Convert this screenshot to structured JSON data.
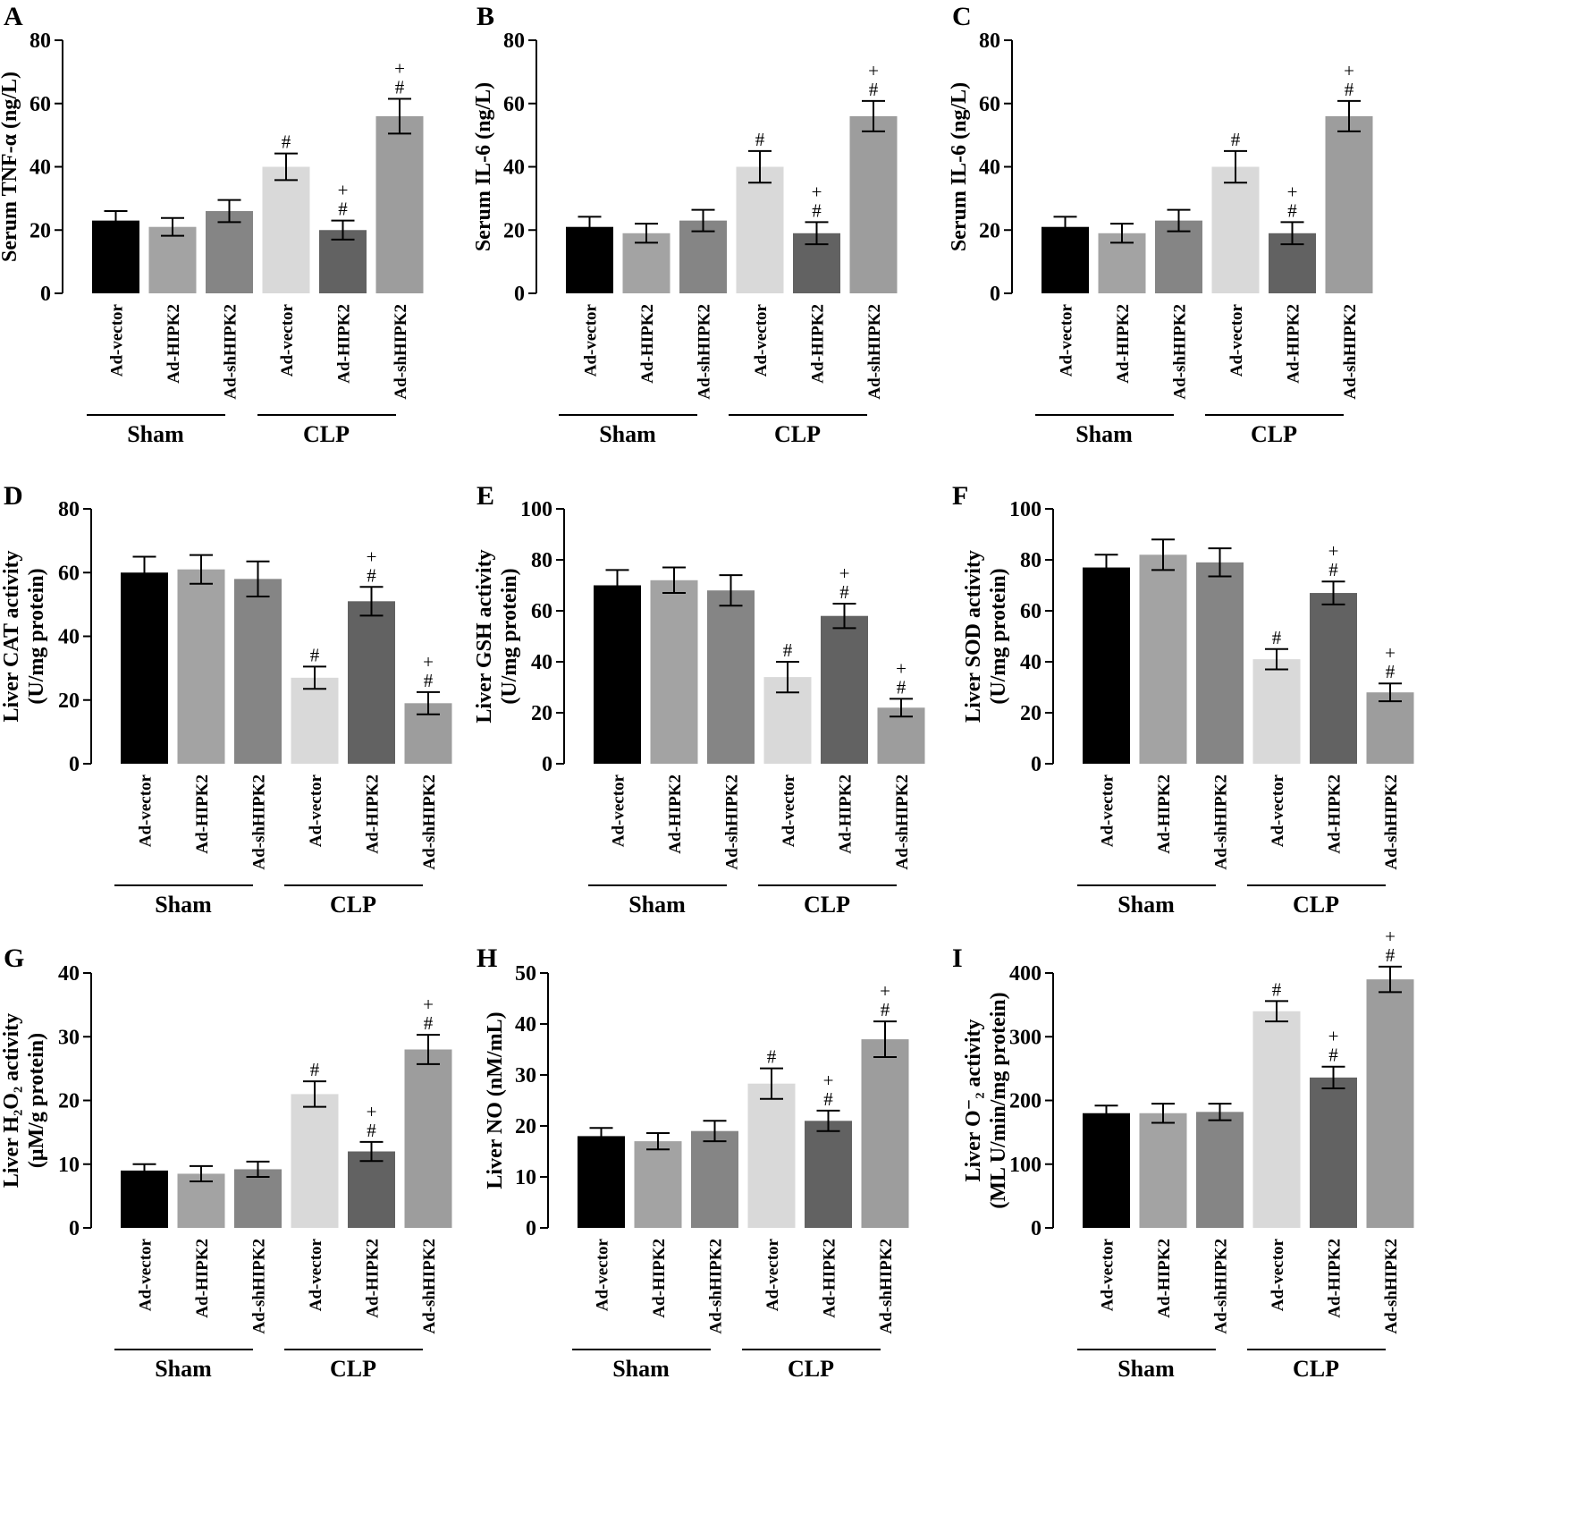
{
  "panels": [
    {
      "letter": "A",
      "ylabel": [
        "Serum TNF-α (ng/L)"
      ],
      "ymax": 80,
      "step": 20,
      "values": [
        23,
        21,
        26,
        40,
        20,
        56
      ],
      "errors": [
        3,
        2.8,
        3.5,
        4.2,
        3,
        5.5
      ],
      "marks": [
        [],
        [],
        [],
        [
          "#"
        ],
        [
          "#",
          "+"
        ],
        [
          "#",
          "+"
        ]
      ]
    },
    {
      "letter": "B",
      "ylabel": [
        "Serum IL-6 (ng/L)"
      ],
      "ymax": 80,
      "step": 20,
      "values": [
        21,
        19,
        23,
        40,
        19,
        56
      ],
      "errors": [
        3.2,
        3,
        3.4,
        5,
        3.5,
        4.8
      ],
      "marks": [
        [],
        [],
        [],
        [
          "#"
        ],
        [
          "#",
          "+"
        ],
        [
          "#",
          "+"
        ]
      ]
    },
    {
      "letter": "C",
      "ylabel": [
        "Serum IL-6 (ng/L)"
      ],
      "ymax": 80,
      "step": 20,
      "values": [
        21,
        19,
        23,
        40,
        19,
        56
      ],
      "errors": [
        3.2,
        3,
        3.4,
        5,
        3.5,
        4.8
      ],
      "marks": [
        [],
        [],
        [],
        [
          "#"
        ],
        [
          "#",
          "+"
        ],
        [
          "#",
          "+"
        ]
      ]
    },
    {
      "letter": "D",
      "ylabel": [
        "Liver CAT activity",
        "(U/mg protein)"
      ],
      "ymax": 80,
      "step": 20,
      "values": [
        60,
        61,
        58,
        27,
        51,
        19
      ],
      "errors": [
        5,
        4.5,
        5.5,
        3.5,
        4.5,
        3.5
      ],
      "marks": [
        [],
        [],
        [],
        [
          "#"
        ],
        [
          "#",
          "+"
        ],
        [
          "#",
          "+"
        ]
      ]
    },
    {
      "letter": "E",
      "ylabel": [
        "Liver GSH activity",
        "(U/mg protein)"
      ],
      "ymax": 100,
      "step": 20,
      "values": [
        70,
        72,
        68,
        34,
        58,
        22
      ],
      "errors": [
        6,
        5,
        6,
        6,
        4.8,
        3.5
      ],
      "marks": [
        [],
        [],
        [],
        [
          "#"
        ],
        [
          "#",
          "+"
        ],
        [
          "#",
          "+"
        ]
      ]
    },
    {
      "letter": "F",
      "ylabel": [
        "Liver SOD activity",
        "(U/mg protein)"
      ],
      "ymax": 100,
      "step": 20,
      "values": [
        77,
        82,
        79,
        41,
        67,
        28
      ],
      "errors": [
        5,
        6,
        5.5,
        4,
        4.5,
        3.5
      ],
      "marks": [
        [],
        [],
        [],
        [
          "#"
        ],
        [
          "#",
          "+"
        ],
        [
          "#",
          "+"
        ]
      ]
    },
    {
      "letter": "G",
      "ylabel": [
        "Liver H₂O₂ activity",
        "(μM/g protein)"
      ],
      "ymax": 40,
      "step": 10,
      "values": [
        9,
        8.5,
        9.2,
        21,
        12,
        28
      ],
      "errors": [
        1,
        1.2,
        1.2,
        2,
        1.5,
        2.3
      ],
      "marks": [
        [],
        [],
        [],
        [
          "#"
        ],
        [
          "#",
          "+"
        ],
        [
          "#",
          "+"
        ]
      ]
    },
    {
      "letter": "H",
      "ylabel": [
        "Liver NO (nM/mL)"
      ],
      "ymax": 50,
      "step": 10,
      "values": [
        18,
        17,
        19,
        28.3,
        21,
        37
      ],
      "errors": [
        1.6,
        1.6,
        2,
        3,
        2,
        3.5
      ],
      "marks": [
        [],
        [],
        [],
        [
          "#"
        ],
        [
          "#",
          "+"
        ],
        [
          "#",
          "+"
        ]
      ]
    },
    {
      "letter": "I",
      "ylabel": [
        "Liver O⁻₂ activity",
        "(ML U/min/mg protein)"
      ],
      "ymax": 400,
      "step": 100,
      "values": [
        180,
        180,
        182,
        340,
        236,
        390
      ],
      "errors": [
        12,
        15,
        13,
        16,
        17,
        20
      ],
      "marks": [
        [],
        [],
        [],
        [
          "#"
        ],
        [
          "#",
          "+"
        ],
        [
          "#",
          "+"
        ]
      ]
    }
  ],
  "categories": [
    "Ad-vector",
    "Ad-HIPK2",
    "Ad-shHIPK2",
    "Ad-vector",
    "Ad-HIPK2",
    "Ad-shHIPK2"
  ],
  "groups": [
    "Sham",
    "CLP"
  ],
  "colors": [
    "#000000",
    "#a3a3a3",
    "#858585",
    "#d9d9d9",
    "#626262",
    "#9d9d9d"
  ],
  "chart_data": [
    {
      "type": "bar",
      "title": "A",
      "ylabel": "Serum TNF-α (ng/L)",
      "ylim": [
        0,
        80
      ],
      "categories": [
        "Ad-vector",
        "Ad-HIPK2",
        "Ad-shHIPK2",
        "Ad-vector",
        "Ad-HIPK2",
        "Ad-shHIPK2"
      ],
      "groups": [
        "Sham",
        "CLP"
      ],
      "values": [
        23,
        21,
        26,
        40,
        20,
        56
      ],
      "errors": [
        3,
        2.8,
        3.5,
        4.2,
        3,
        5.5
      ]
    },
    {
      "type": "bar",
      "title": "B",
      "ylabel": "Serum IL-6 (ng/L)",
      "ylim": [
        0,
        80
      ],
      "categories": [
        "Ad-vector",
        "Ad-HIPK2",
        "Ad-shHIPK2",
        "Ad-vector",
        "Ad-HIPK2",
        "Ad-shHIPK2"
      ],
      "groups": [
        "Sham",
        "CLP"
      ],
      "values": [
        21,
        19,
        23,
        40,
        19,
        56
      ],
      "errors": [
        3.2,
        3,
        3.4,
        5,
        3.5,
        4.8
      ]
    },
    {
      "type": "bar",
      "title": "C",
      "ylabel": "Serum IL-6 (ng/L)",
      "ylim": [
        0,
        80
      ],
      "categories": [
        "Ad-vector",
        "Ad-HIPK2",
        "Ad-shHIPK2",
        "Ad-vector",
        "Ad-HIPK2",
        "Ad-shHIPK2"
      ],
      "groups": [
        "Sham",
        "CLP"
      ],
      "values": [
        21,
        19,
        23,
        40,
        19,
        56
      ],
      "errors": [
        3.2,
        3,
        3.4,
        5,
        3.5,
        4.8
      ]
    },
    {
      "type": "bar",
      "title": "D",
      "ylabel": "Liver CAT activity (U/mg protein)",
      "ylim": [
        0,
        80
      ],
      "categories": [
        "Ad-vector",
        "Ad-HIPK2",
        "Ad-shHIPK2",
        "Ad-vector",
        "Ad-HIPK2",
        "Ad-shHIPK2"
      ],
      "groups": [
        "Sham",
        "CLP"
      ],
      "values": [
        60,
        61,
        58,
        27,
        51,
        19
      ],
      "errors": [
        5,
        4.5,
        5.5,
        3.5,
        4.5,
        3.5
      ]
    },
    {
      "type": "bar",
      "title": "E",
      "ylabel": "Liver GSH activity (U/mg protein)",
      "ylim": [
        0,
        100
      ],
      "categories": [
        "Ad-vector",
        "Ad-HIPK2",
        "Ad-shHIPK2",
        "Ad-vector",
        "Ad-HIPK2",
        "Ad-shHIPK2"
      ],
      "groups": [
        "Sham",
        "CLP"
      ],
      "values": [
        70,
        72,
        68,
        34,
        58,
        22
      ],
      "errors": [
        6,
        5,
        6,
        6,
        4.8,
        3.5
      ]
    },
    {
      "type": "bar",
      "title": "F",
      "ylabel": "Liver SOD activity (U/mg protein)",
      "ylim": [
        0,
        100
      ],
      "categories": [
        "Ad-vector",
        "Ad-HIPK2",
        "Ad-shHIPK2",
        "Ad-vector",
        "Ad-HIPK2",
        "Ad-shHIPK2"
      ],
      "groups": [
        "Sham",
        "CLP"
      ],
      "values": [
        77,
        82,
        79,
        41,
        67,
        28
      ],
      "errors": [
        5,
        6,
        5.5,
        4,
        4.5,
        3.5
      ]
    },
    {
      "type": "bar",
      "title": "G",
      "ylabel": "Liver H2O2 activity (μM/g protein)",
      "ylim": [
        0,
        40
      ],
      "categories": [
        "Ad-vector",
        "Ad-HIPK2",
        "Ad-shHIPK2",
        "Ad-vector",
        "Ad-HIPK2",
        "Ad-shHIPK2"
      ],
      "groups": [
        "Sham",
        "CLP"
      ],
      "values": [
        9,
        8.5,
        9.2,
        21,
        12,
        28
      ],
      "errors": [
        1,
        1.2,
        1.2,
        2,
        1.5,
        2.3
      ]
    },
    {
      "type": "bar",
      "title": "H",
      "ylabel": "Liver NO (nM/mL)",
      "ylim": [
        0,
        50
      ],
      "categories": [
        "Ad-vector",
        "Ad-HIPK2",
        "Ad-shHIPK2",
        "Ad-vector",
        "Ad-HIPK2",
        "Ad-shHIPK2"
      ],
      "groups": [
        "Sham",
        "CLP"
      ],
      "values": [
        18,
        17,
        19,
        28.3,
        21,
        37
      ],
      "errors": [
        1.6,
        1.6,
        2,
        3,
        2,
        3.5
      ]
    },
    {
      "type": "bar",
      "title": "I",
      "ylabel": "Liver O-2 activity (ML U/min/mg protein)",
      "ylim": [
        0,
        400
      ],
      "categories": [
        "Ad-vector",
        "Ad-HIPK2",
        "Ad-shHIPK2",
        "Ad-vector",
        "Ad-HIPK2",
        "Ad-shHIPK2"
      ],
      "groups": [
        "Sham",
        "CLP"
      ],
      "values": [
        180,
        180,
        182,
        340,
        236,
        390
      ],
      "errors": [
        12,
        15,
        13,
        16,
        17,
        20
      ]
    }
  ]
}
